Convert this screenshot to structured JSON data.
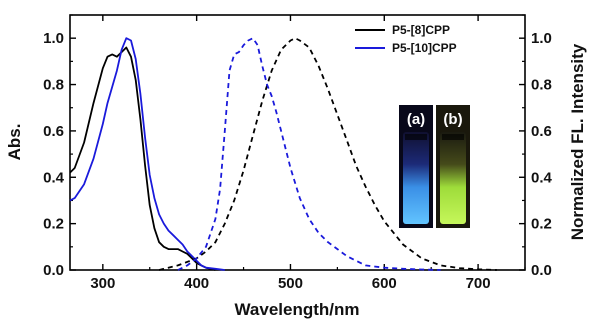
{
  "chart_data": {
    "type": "line",
    "xlabel": "Wavelength/nm",
    "ylabel_left": "Abs.",
    "ylabel_right": "Normalized FL. Intensity",
    "xlim": [
      265,
      750
    ],
    "ylim": [
      0,
      1.1
    ],
    "x_ticks": [
      300,
      400,
      500,
      600,
      700
    ],
    "y_ticks": [
      0.0,
      0.2,
      0.4,
      0.6,
      0.8,
      1.0
    ],
    "y_tick_labels": [
      "0.0",
      "0.2",
      "0.4",
      "0.6",
      "0.8",
      "1.0"
    ],
    "legend_position": "top-right",
    "colors": {
      "P5-[8]CPP": "#000000",
      "P5-[10]CPP": "#1a1adb"
    },
    "series": [
      {
        "name": "P5-[8]CPP",
        "kind": "absorption",
        "line_style": "solid",
        "color": "#000000",
        "x": [
          265,
          270,
          280,
          290,
          300,
          305,
          310,
          315,
          320,
          325,
          330,
          335,
          340,
          345,
          350,
          355,
          360,
          365,
          370,
          375,
          380,
          385,
          390,
          395,
          400,
          405,
          410,
          420
        ],
        "y": [
          0.42,
          0.44,
          0.55,
          0.72,
          0.87,
          0.92,
          0.93,
          0.92,
          0.94,
          0.96,
          0.92,
          0.82,
          0.65,
          0.45,
          0.28,
          0.18,
          0.12,
          0.1,
          0.09,
          0.09,
          0.09,
          0.08,
          0.07,
          0.05,
          0.03,
          0.02,
          0.01,
          0.0
        ]
      },
      {
        "name": "P5-[10]CPP",
        "kind": "absorption",
        "line_style": "solid",
        "color": "#1a1adb",
        "x": [
          265,
          270,
          280,
          290,
          300,
          305,
          310,
          315,
          320,
          325,
          330,
          335,
          340,
          345,
          350,
          355,
          360,
          365,
          370,
          375,
          380,
          385,
          390,
          395,
          400,
          405,
          410,
          420,
          430
        ],
        "y": [
          0.3,
          0.31,
          0.37,
          0.48,
          0.63,
          0.72,
          0.79,
          0.86,
          0.95,
          1.0,
          0.99,
          0.91,
          0.76,
          0.57,
          0.41,
          0.31,
          0.24,
          0.2,
          0.17,
          0.15,
          0.13,
          0.11,
          0.08,
          0.06,
          0.04,
          0.02,
          0.01,
          0.005,
          0.0
        ]
      },
      {
        "name": "P5-[8]CPP",
        "kind": "emission",
        "line_style": "dashed",
        "color": "#000000",
        "x": [
          360,
          380,
          400,
          410,
          420,
          430,
          440,
          450,
          460,
          470,
          480,
          490,
          500,
          505,
          510,
          520,
          530,
          540,
          550,
          560,
          570,
          580,
          590,
          600,
          620,
          640,
          660,
          680,
          700,
          720
        ],
        "y": [
          0.0,
          0.02,
          0.05,
          0.08,
          0.12,
          0.2,
          0.3,
          0.43,
          0.58,
          0.73,
          0.86,
          0.95,
          0.99,
          1.0,
          0.99,
          0.96,
          0.88,
          0.78,
          0.67,
          0.56,
          0.45,
          0.36,
          0.28,
          0.21,
          0.11,
          0.05,
          0.02,
          0.008,
          0.003,
          0.0
        ]
      },
      {
        "name": "P5-[10]CPP",
        "kind": "emission",
        "line_style": "dashed",
        "color": "#1a1adb",
        "x": [
          380,
          390,
          400,
          410,
          420,
          425,
          430,
          435,
          440,
          445,
          450,
          455,
          460,
          465,
          470,
          475,
          480,
          485,
          490,
          500,
          510,
          520,
          530,
          540,
          550,
          560,
          570,
          580,
          600,
          620,
          640,
          660
        ],
        "y": [
          0.0,
          0.02,
          0.05,
          0.1,
          0.22,
          0.35,
          0.6,
          0.86,
          0.93,
          0.94,
          0.97,
          0.99,
          1.0,
          0.97,
          0.88,
          0.8,
          0.75,
          0.68,
          0.6,
          0.44,
          0.31,
          0.22,
          0.16,
          0.12,
          0.09,
          0.06,
          0.04,
          0.02,
          0.01,
          0.005,
          0.002,
          0.0
        ]
      }
    ],
    "inset": {
      "labels": [
        "(a)",
        "(b)"
      ],
      "colors": {
        "vial_a_glow": "#4fb3ff",
        "vial_b_glow": "#b8f24a"
      }
    }
  }
}
